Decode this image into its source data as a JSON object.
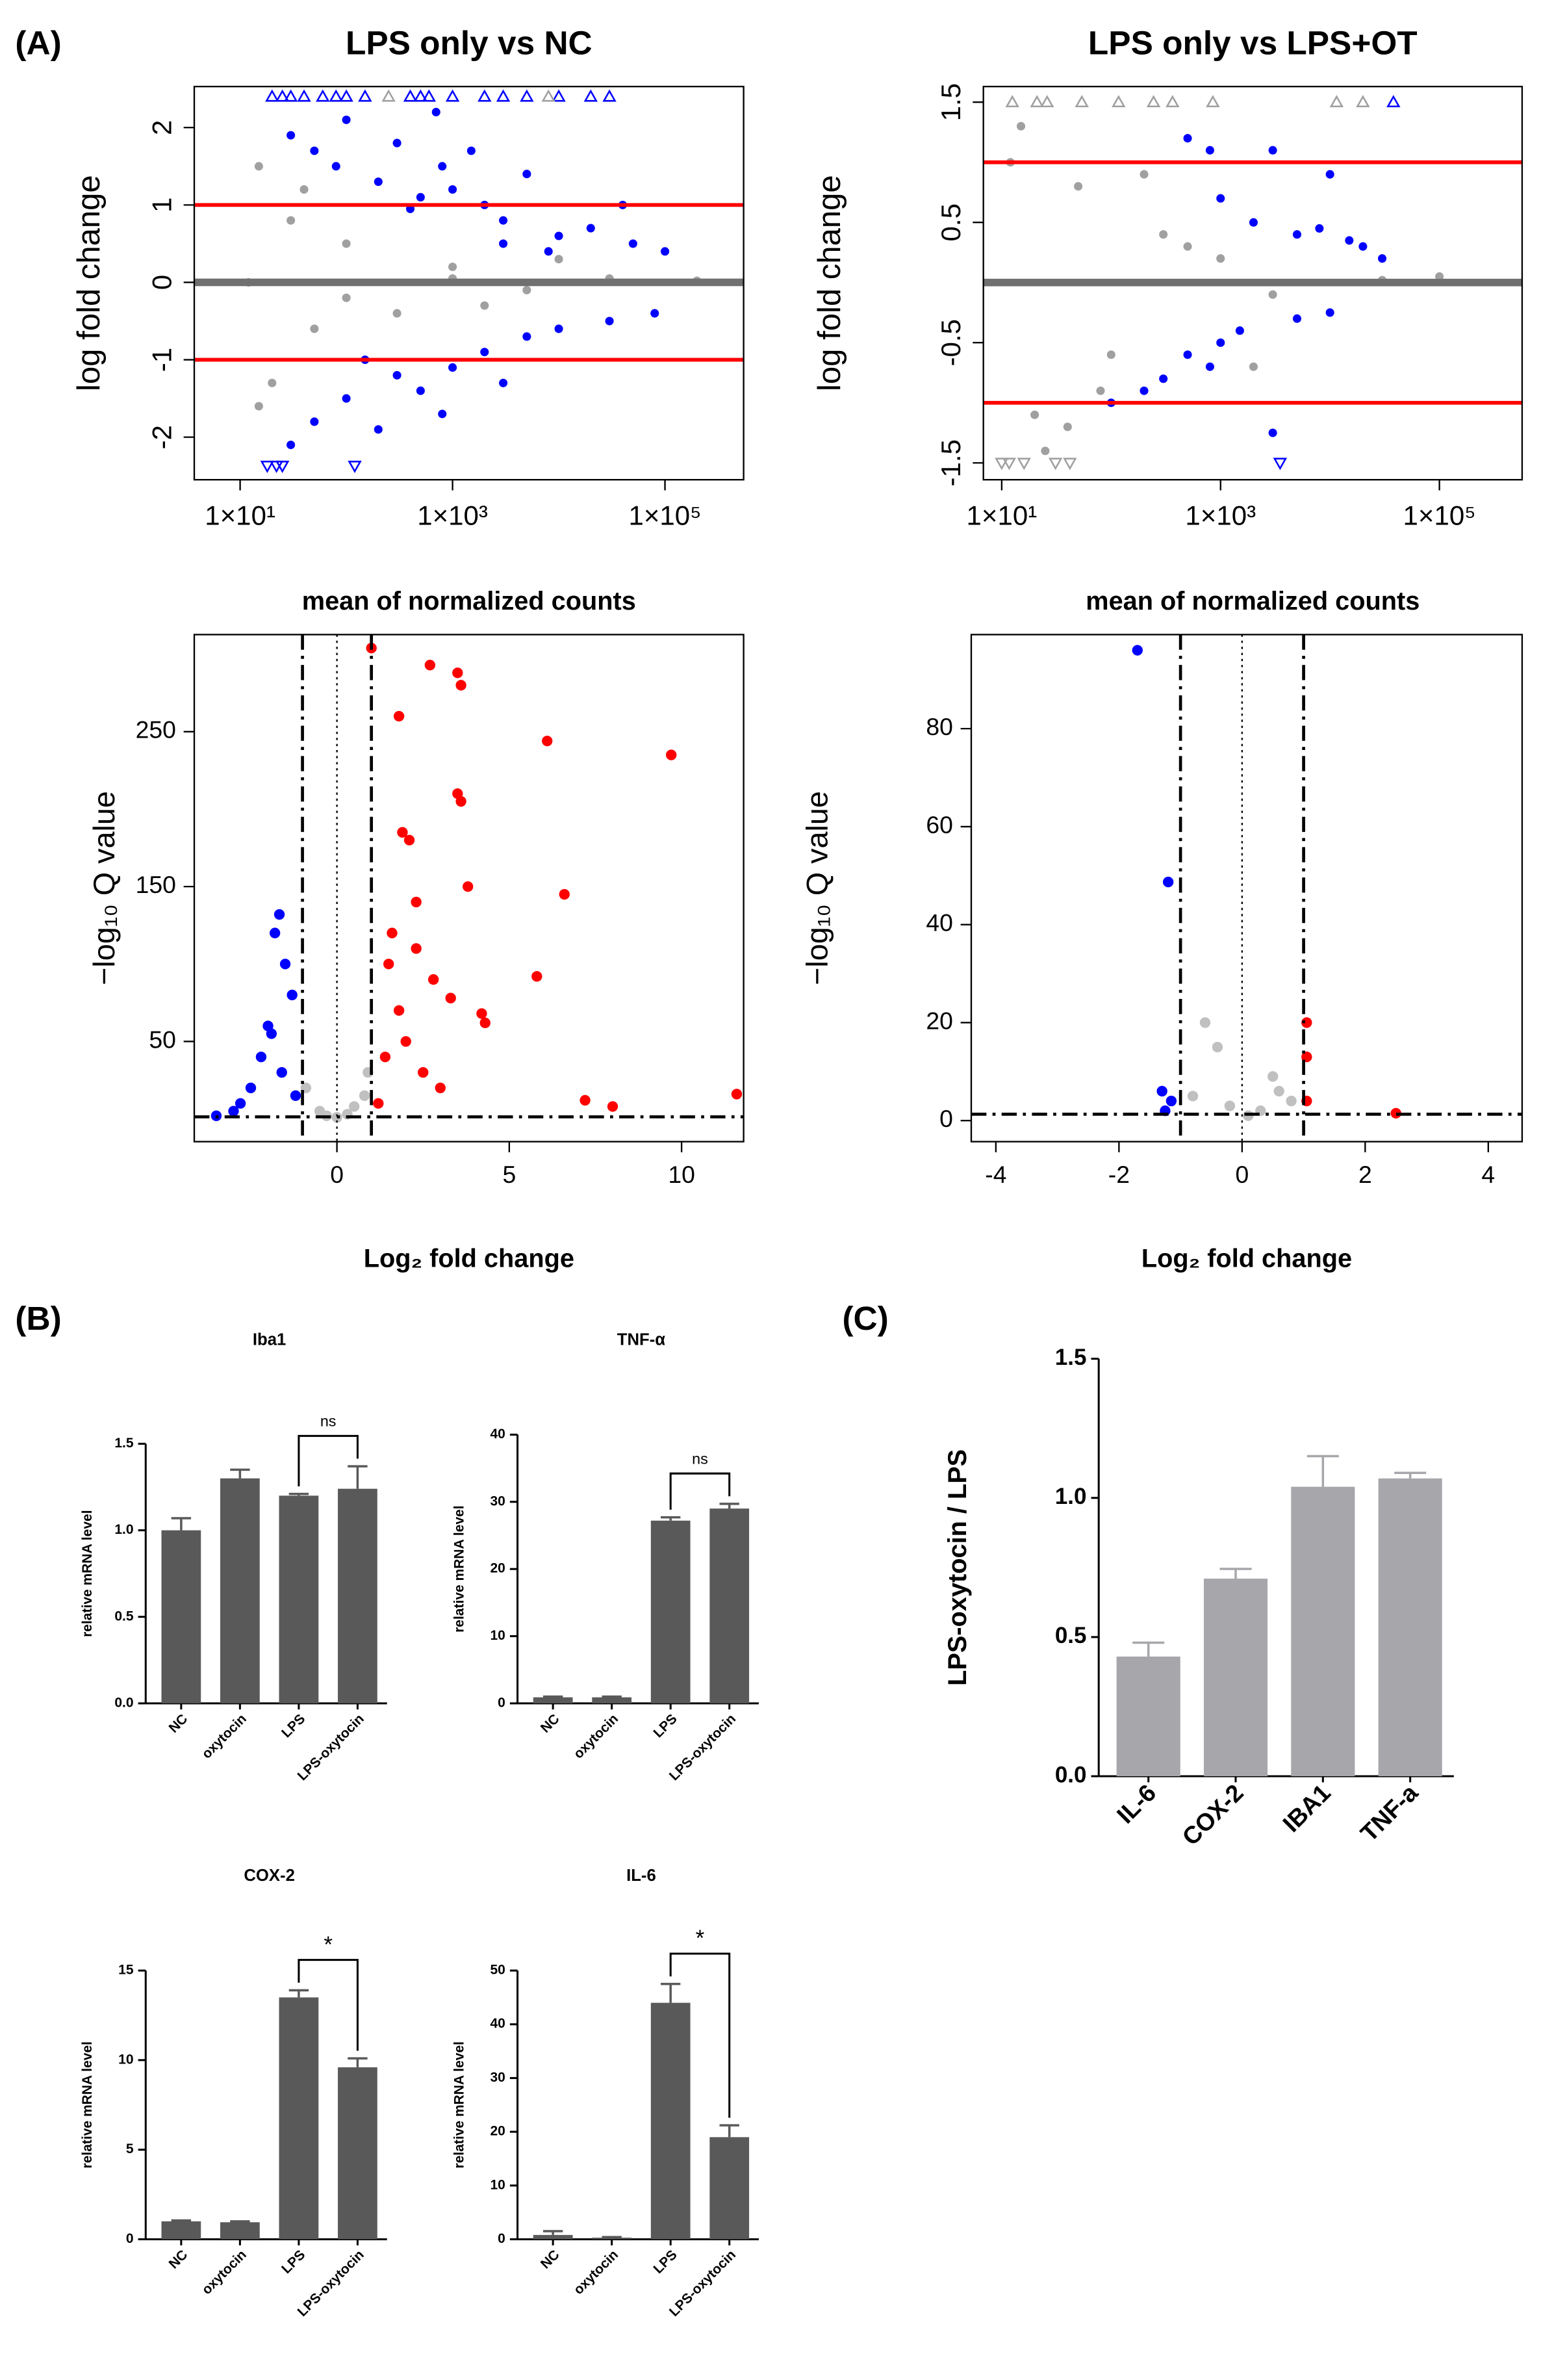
{
  "panel_labels": [
    "(A)",
    "(B)",
    "(C)"
  ],
  "chart_data": [
    {
      "type": "scatter",
      "title": "LPS only vs NC",
      "x_label": "mean of normalized counts",
      "y_label": "log fold change",
      "xscale": "log",
      "xlim": [
        3.7,
        550000
      ],
      "ylim": [
        -2.55,
        2.53
      ],
      "xticks": [
        {
          "value": 10,
          "label": "1×10¹"
        },
        {
          "value": 1000,
          "label": "1×10³"
        },
        {
          "value": 100000,
          "label": "1×10⁵"
        }
      ],
      "yticks": [
        -2,
        -1,
        0,
        1,
        2
      ],
      "hlines": [
        {
          "value": 0,
          "color": "#707070",
          "style": "band"
        },
        {
          "value": 1,
          "color": "#ff0000",
          "style": "solid"
        },
        {
          "value": -1,
          "color": "#ff0000",
          "style": "solid"
        }
      ],
      "series": [
        {
          "color": "#a0a0a0",
          "marker": "circle",
          "x": [
            15,
            20,
            30,
            50,
            100,
            300,
            1000,
            5000,
            30000,
            200000,
            12,
            100,
            1000,
            15,
            40,
            2000,
            10000
          ],
          "values": [
            1.5,
            -1.3,
            0.8,
            -0.6,
            0.5,
            -0.4,
            0.2,
            -0.1,
            0.05,
            0.02,
            0,
            -0.2,
            0.05,
            -1.6,
            1.2,
            -0.3,
            0.3
          ]
        },
        {
          "color": "#0000ff",
          "marker": "circle",
          "x": [
            30,
            50,
            80,
            100,
            200,
            300,
            500,
            800,
            1000,
            2000,
            3000,
            5000,
            10000,
            20000,
            50000,
            100000,
            400,
            3000,
            8000,
            700,
            1500,
            40000,
            30,
            50,
            100,
            200,
            300,
            500,
            1000,
            2000,
            5000,
            10000,
            30000,
            80000,
            800,
            150,
            3000
          ],
          "values": [
            1.9,
            1.7,
            1.5,
            2.1,
            1.3,
            1.8,
            1.1,
            1.5,
            1.2,
            1.0,
            0.8,
            1.4,
            0.6,
            0.7,
            0.5,
            0.4,
            0.95,
            0.5,
            0.4,
            2.2,
            1.7,
            1.0,
            -2.1,
            -1.8,
            -1.5,
            -1.9,
            -1.2,
            -1.4,
            -1.1,
            -0.9,
            -0.7,
            -0.6,
            -0.5,
            -0.4,
            -1.7,
            -1.0,
            -1.3
          ]
        },
        {
          "color": "#0000ff",
          "marker": "triangle-up",
          "x": [
            20,
            25,
            30,
            40,
            60,
            80,
            100,
            150,
            400,
            500,
            600,
            1000,
            2000,
            3000,
            5000,
            10000,
            20000,
            30000
          ],
          "values": [
            2.4,
            2.4,
            2.4,
            2.4,
            2.4,
            2.4,
            2.4,
            2.4,
            2.4,
            2.4,
            2.4,
            2.4,
            2.4,
            2.4,
            2.4,
            2.4,
            2.4,
            2.4
          ]
        },
        {
          "color": "#a0a0a0",
          "marker": "triangle-up",
          "x": [
            250,
            8000
          ],
          "values": [
            2.4,
            2.4
          ]
        },
        {
          "color": "#0000ff",
          "marker": "triangle-down",
          "x": [
            18,
            22,
            25,
            120
          ],
          "values": [
            -2.37,
            -2.37,
            -2.37,
            -2.37
          ]
        }
      ]
    },
    {
      "type": "scatter",
      "title": "LPS only vs LPS+OT",
      "x_label": "mean of normalized counts",
      "y_label": "log fold change",
      "xscale": "log",
      "xlim": [
        6.8,
        570000
      ],
      "ylim": [
        -1.64,
        1.63
      ],
      "xticks": [
        {
          "value": 10,
          "label": "1×10¹"
        },
        {
          "value": 1000,
          "label": "1×10³"
        },
        {
          "value": 100000,
          "label": "1×10⁵"
        }
      ],
      "yticks": [
        -1.5,
        -0.5,
        0.5,
        1.5
      ],
      "hlines": [
        {
          "value": 0,
          "color": "#707070",
          "style": "band"
        },
        {
          "value": 1,
          "color": "#ff0000",
          "style": "solid"
        },
        {
          "value": -1,
          "color": "#ff0000",
          "style": "solid"
        }
      ],
      "series": [
        {
          "color": "#a0a0a0",
          "marker": "circle",
          "x": [
            12,
            20,
            50,
            100,
            300,
            1000,
            3000,
            30000,
            100000,
            15,
            80,
            25,
            2000,
            200,
            40,
            500
          ],
          "values": [
            1.0,
            -1.1,
            0.8,
            -0.6,
            0.4,
            0.2,
            -0.1,
            0.02,
            0.05,
            1.3,
            -0.9,
            -1.4,
            -0.7,
            0.9,
            -1.2,
            0.3
          ]
        },
        {
          "color": "#0000ff",
          "marker": "circle",
          "x": [
            800,
            500,
            1000,
            3000,
            10000,
            2000,
            5000,
            20000,
            30000,
            8000,
            15000,
            100,
            200,
            500,
            1000,
            3000,
            1500,
            5000,
            800,
            300,
            10000
          ],
          "values": [
            1.1,
            1.2,
            0.7,
            1.1,
            0.9,
            0.5,
            0.4,
            0.3,
            0.2,
            0.45,
            0.35,
            -1.0,
            -0.9,
            -0.6,
            -0.5,
            -1.25,
            -0.4,
            -0.3,
            -0.7,
            -0.8,
            -0.25
          ]
        },
        {
          "color": "#a0a0a0",
          "marker": "triangle-up",
          "x": [
            12.5,
            21,
            26,
            54,
            117,
            244,
            364,
            850,
            11500,
            20000
          ],
          "values": [
            1.5,
            1.5,
            1.5,
            1.5,
            1.5,
            1.5,
            1.5,
            1.5,
            1.5,
            1.5
          ]
        },
        {
          "color": "#0000ff",
          "marker": "triangle-up",
          "x": [
            38000
          ],
          "values": [
            1.5
          ]
        },
        {
          "color": "#a0a0a0",
          "marker": "triangle-down",
          "x": [
            10,
            11.7,
            16,
            31,
            42
          ],
          "values": [
            -1.5,
            -1.5,
            -1.5,
            -1.5,
            -1.5
          ]
        },
        {
          "color": "#0000ff",
          "marker": "triangle-down",
          "x": [
            3500
          ],
          "values": [
            -1.5
          ]
        }
      ]
    },
    {
      "type": "scatter",
      "x_label": "Log₂ fold change",
      "y_label": "−log₁₀ Q value",
      "xlim": [
        -4.14,
        11.8
      ],
      "ylim": [
        -14.7,
        312.7
      ],
      "xticks": [
        0,
        5,
        10
      ],
      "yticks": [
        50,
        150,
        250
      ],
      "vlines": [
        {
          "value": -1,
          "color": "#000000",
          "style": "dashdot"
        },
        {
          "value": 1,
          "color": "#000000",
          "style": "dashdot"
        },
        {
          "value": 0,
          "color": "#000000",
          "style": "dotted"
        }
      ],
      "hlines": [
        {
          "value": 1.3,
          "color": "#000000",
          "style": "dashdot"
        }
      ],
      "series": [
        {
          "color": "#c0c0c0",
          "marker": "circle",
          "x": [
            -0.5,
            0.3,
            0.8,
            -0.9,
            0.9,
            0,
            -0.3,
            0.5
          ],
          "values": [
            5,
            3,
            15,
            20,
            30,
            1,
            2,
            8
          ]
        },
        {
          "color": "#0000ff",
          "marker": "circle",
          "x": [
            -1.67,
            -1.8,
            -1.5,
            -2.0,
            -1.3,
            -2.2,
            -1.6,
            -2.5,
            -3.0,
            -3.5,
            -1.2,
            -2.8,
            -1.9
          ],
          "values": [
            132,
            120,
            100,
            60,
            80,
            40,
            30,
            20,
            5,
            2,
            15,
            10,
            55
          ]
        },
        {
          "color": "#ff0000",
          "marker": "circle",
          "x": [
            1.0,
            2.7,
            3.5,
            3.6,
            6.1,
            9.7,
            3.5,
            3.6,
            1.9,
            2.1,
            1.8,
            3.8,
            6.6,
            2.3,
            5.8,
            11.6,
            4.2,
            4.3,
            3.3,
            7.2,
            8.0,
            1.5,
            1.6,
            2.0,
            2.5,
            3.0,
            1.2,
            1.4,
            1.8,
            2.8,
            2.3
          ],
          "values": [
            304,
            293,
            288,
            280,
            244,
            235,
            210,
            205,
            185,
            180,
            260,
            150,
            145,
            140,
            92,
            16,
            68,
            62,
            78,
            12,
            8,
            100,
            120,
            50,
            30,
            20,
            10,
            40,
            70,
            90,
            110
          ]
        }
      ]
    },
    {
      "type": "scatter",
      "x_label": "Log₂ fold change",
      "y_label": "−log₁₀ Q value",
      "xlim": [
        -4.4,
        4.55
      ],
      "ylim": [
        -4.3,
        99.2
      ],
      "xticks": [
        -4,
        -2,
        0,
        2,
        4
      ],
      "yticks": [
        0,
        20,
        40,
        60,
        80
      ],
      "vlines": [
        {
          "value": -1,
          "color": "#000000",
          "style": "dashdot"
        },
        {
          "value": 1,
          "color": "#000000",
          "style": "dashdot"
        },
        {
          "value": 0,
          "color": "#000000",
          "style": "dotted"
        }
      ],
      "hlines": [
        {
          "value": 1.3,
          "color": "#000000",
          "style": "dashdot"
        }
      ],
      "series": [
        {
          "color": "#c0c0c0",
          "marker": "circle",
          "x": [
            -0.6,
            -0.4,
            0.5,
            0.6,
            -0.2,
            0.1,
            0.3,
            -0.8,
            0.8
          ],
          "values": [
            20,
            15,
            9,
            6,
            3,
            1,
            2,
            5,
            4
          ]
        },
        {
          "color": "#0000ff",
          "marker": "circle",
          "x": [
            -1.7,
            -1.2,
            -1.3,
            -1.15,
            -1.25
          ],
          "values": [
            96,
            48.7,
            6,
            4,
            2
          ]
        },
        {
          "color": "#ff0000",
          "marker": "circle",
          "x": [
            1.05,
            1.05,
            1.05,
            2.5
          ],
          "values": [
            20,
            13,
            4,
            1.5
          ]
        }
      ]
    },
    {
      "type": "bar",
      "title": "Iba1",
      "y_label": "relative mRNA level",
      "color": "#595959",
      "categories": [
        "NC",
        "oxytocin",
        "LPS",
        "LPS-oxytocin"
      ],
      "values": [
        1.0,
        1.3,
        1.2,
        1.24
      ],
      "errors": [
        0.07,
        0.05,
        0.01,
        0.13
      ],
      "ylim": [
        0,
        1.5
      ],
      "yticks": [
        {
          "value": 0,
          "label": "0.0"
        },
        0.5,
        {
          "value": 1,
          "label": "1.0"
        },
        1.5
      ],
      "comparisons": [
        {
          "between": [
            2,
            3
          ],
          "label": "ns"
        }
      ]
    },
    {
      "type": "bar",
      "title": "TNF-α",
      "y_label": "relative mRNA level",
      "color": "#595959",
      "categories": [
        "NC",
        "oxytocin",
        "LPS",
        "LPS-oxytocin"
      ],
      "values": [
        0.9,
        0.9,
        27.2,
        29.0
      ],
      "errors": [
        0.1,
        0.1,
        0.5,
        0.7
      ],
      "ylim": [
        0,
        40
      ],
      "yticks": [
        0,
        10,
        20,
        30,
        40
      ],
      "comparisons": [
        {
          "between": [
            2,
            3
          ],
          "label": "ns"
        }
      ]
    },
    {
      "type": "bar",
      "title": "COX-2",
      "y_label": "relative mRNA level",
      "color": "#595959",
      "categories": [
        "NC",
        "oxytocin",
        "LPS",
        "LPS-oxytocin"
      ],
      "values": [
        1.0,
        0.95,
        13.5,
        9.6
      ],
      "errors": [
        0.05,
        0.05,
        0.4,
        0.5
      ],
      "ylim": [
        0,
        15
      ],
      "yticks": [
        0,
        5,
        10,
        15
      ],
      "comparisons": [
        {
          "between": [
            2,
            3
          ],
          "label": "*"
        }
      ]
    },
    {
      "type": "bar",
      "title": "IL-6",
      "y_label": "relative mRNA level",
      "color": "#595959",
      "categories": [
        "NC",
        "oxytocin",
        "LPS",
        "LPS-oxytocin"
      ],
      "values": [
        0.8,
        0.3,
        44,
        19
      ],
      "errors": [
        0.7,
        0.1,
        3.5,
        2.2
      ],
      "ylim": [
        0,
        50
      ],
      "yticks": [
        0,
        10,
        20,
        30,
        40,
        50
      ],
      "comparisons": [
        {
          "between": [
            2,
            3
          ],
          "label": "*"
        }
      ]
    },
    {
      "type": "bar",
      "y_label": "LPS-oxytocin / LPS",
      "color": "#a6a6ab",
      "categories": [
        "IL-6",
        "COX-2",
        "IBA1",
        "TNF-a"
      ],
      "values": [
        0.43,
        0.71,
        1.04,
        1.07
      ],
      "errors": [
        0.05,
        0.035,
        0.11,
        0.02
      ],
      "ylim": [
        0,
        1.5
      ],
      "yticks": [
        {
          "value": 0,
          "label": "0.0"
        },
        0.5,
        {
          "value": 1,
          "label": "1.0"
        },
        1.5
      ]
    }
  ]
}
